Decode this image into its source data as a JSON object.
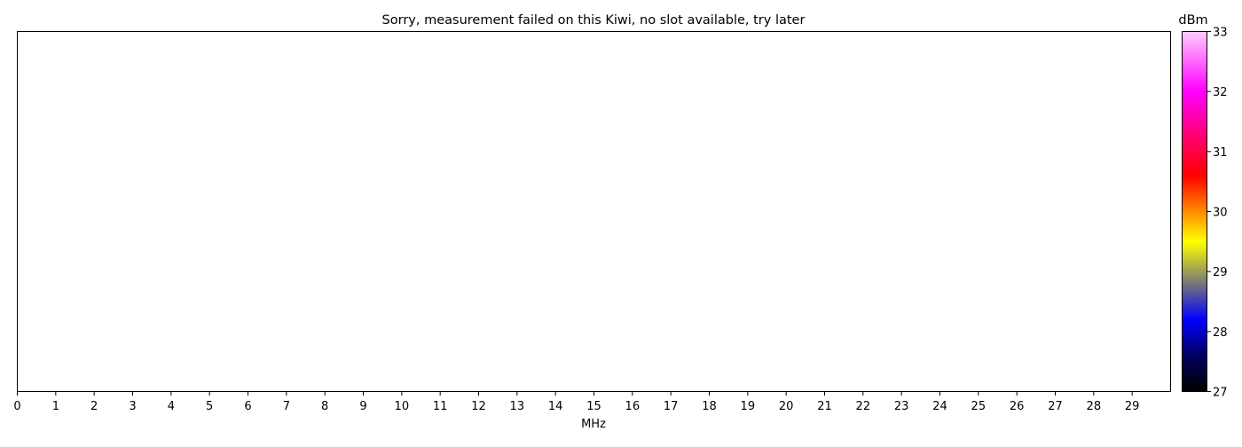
{
  "chart_data": {
    "type": "heatmap",
    "title": "Sorry, measurement failed on this Kiwi, no slot available, try later",
    "xlabel": "MHz",
    "ylabel": "",
    "xlim": [
      0,
      30
    ],
    "x_ticks": [
      0,
      1,
      2,
      3,
      4,
      5,
      6,
      7,
      8,
      9,
      10,
      11,
      12,
      13,
      14,
      15,
      16,
      17,
      18,
      19,
      20,
      21,
      22,
      23,
      24,
      25,
      26,
      27,
      28,
      29
    ],
    "values": [],
    "grid": false,
    "colorbar": {
      "label": "dBm",
      "range": [
        27,
        33
      ],
      "ticks": [
        27,
        28,
        29,
        30,
        31,
        32,
        33
      ],
      "colormap": [
        {
          "value": 27.0,
          "color": "#000000"
        },
        {
          "value": 27.6,
          "color": "#000060"
        },
        {
          "value": 28.2,
          "color": "#0000ff"
        },
        {
          "value": 28.9,
          "color": "#8a8a66"
        },
        {
          "value": 29.5,
          "color": "#ffff00"
        },
        {
          "value": 30.0,
          "color": "#ff8c00"
        },
        {
          "value": 30.6,
          "color": "#ff0000"
        },
        {
          "value": 31.2,
          "color": "#ff0066"
        },
        {
          "value": 32.0,
          "color": "#ff00ff"
        },
        {
          "value": 33.0,
          "color": "#ffccff"
        }
      ]
    }
  }
}
